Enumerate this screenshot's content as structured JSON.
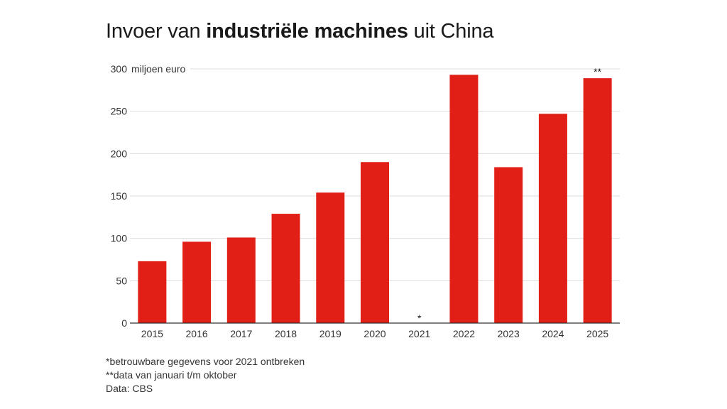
{
  "title": {
    "prefix": "Invoer van ",
    "bold": "industriële machines",
    "suffix": " uit China"
  },
  "chart_data": {
    "type": "bar",
    "title": "Invoer van industriële machines uit China",
    "ylabel": "miljoen euro",
    "xlabel": "",
    "ylim": [
      0,
      300
    ],
    "yticks": [
      0,
      50,
      100,
      150,
      200,
      250,
      300
    ],
    "categories": [
      "2015",
      "2016",
      "2017",
      "2018",
      "2019",
      "2020",
      "2021",
      "2022",
      "2023",
      "2024",
      "2025"
    ],
    "values": [
      73,
      96,
      101,
      129,
      154,
      190,
      null,
      293,
      184,
      247,
      289
    ],
    "annotations": [
      {
        "category": "2021",
        "text": "*"
      },
      {
        "category": "2025",
        "text": "**"
      }
    ],
    "bar_color": "#e11f16",
    "grid": true
  },
  "footnotes": {
    "note1": "*betrouwbare gegevens voor 2021 ontbreken",
    "note2": "**data van januari t/m oktober",
    "source": "Data: CBS"
  }
}
